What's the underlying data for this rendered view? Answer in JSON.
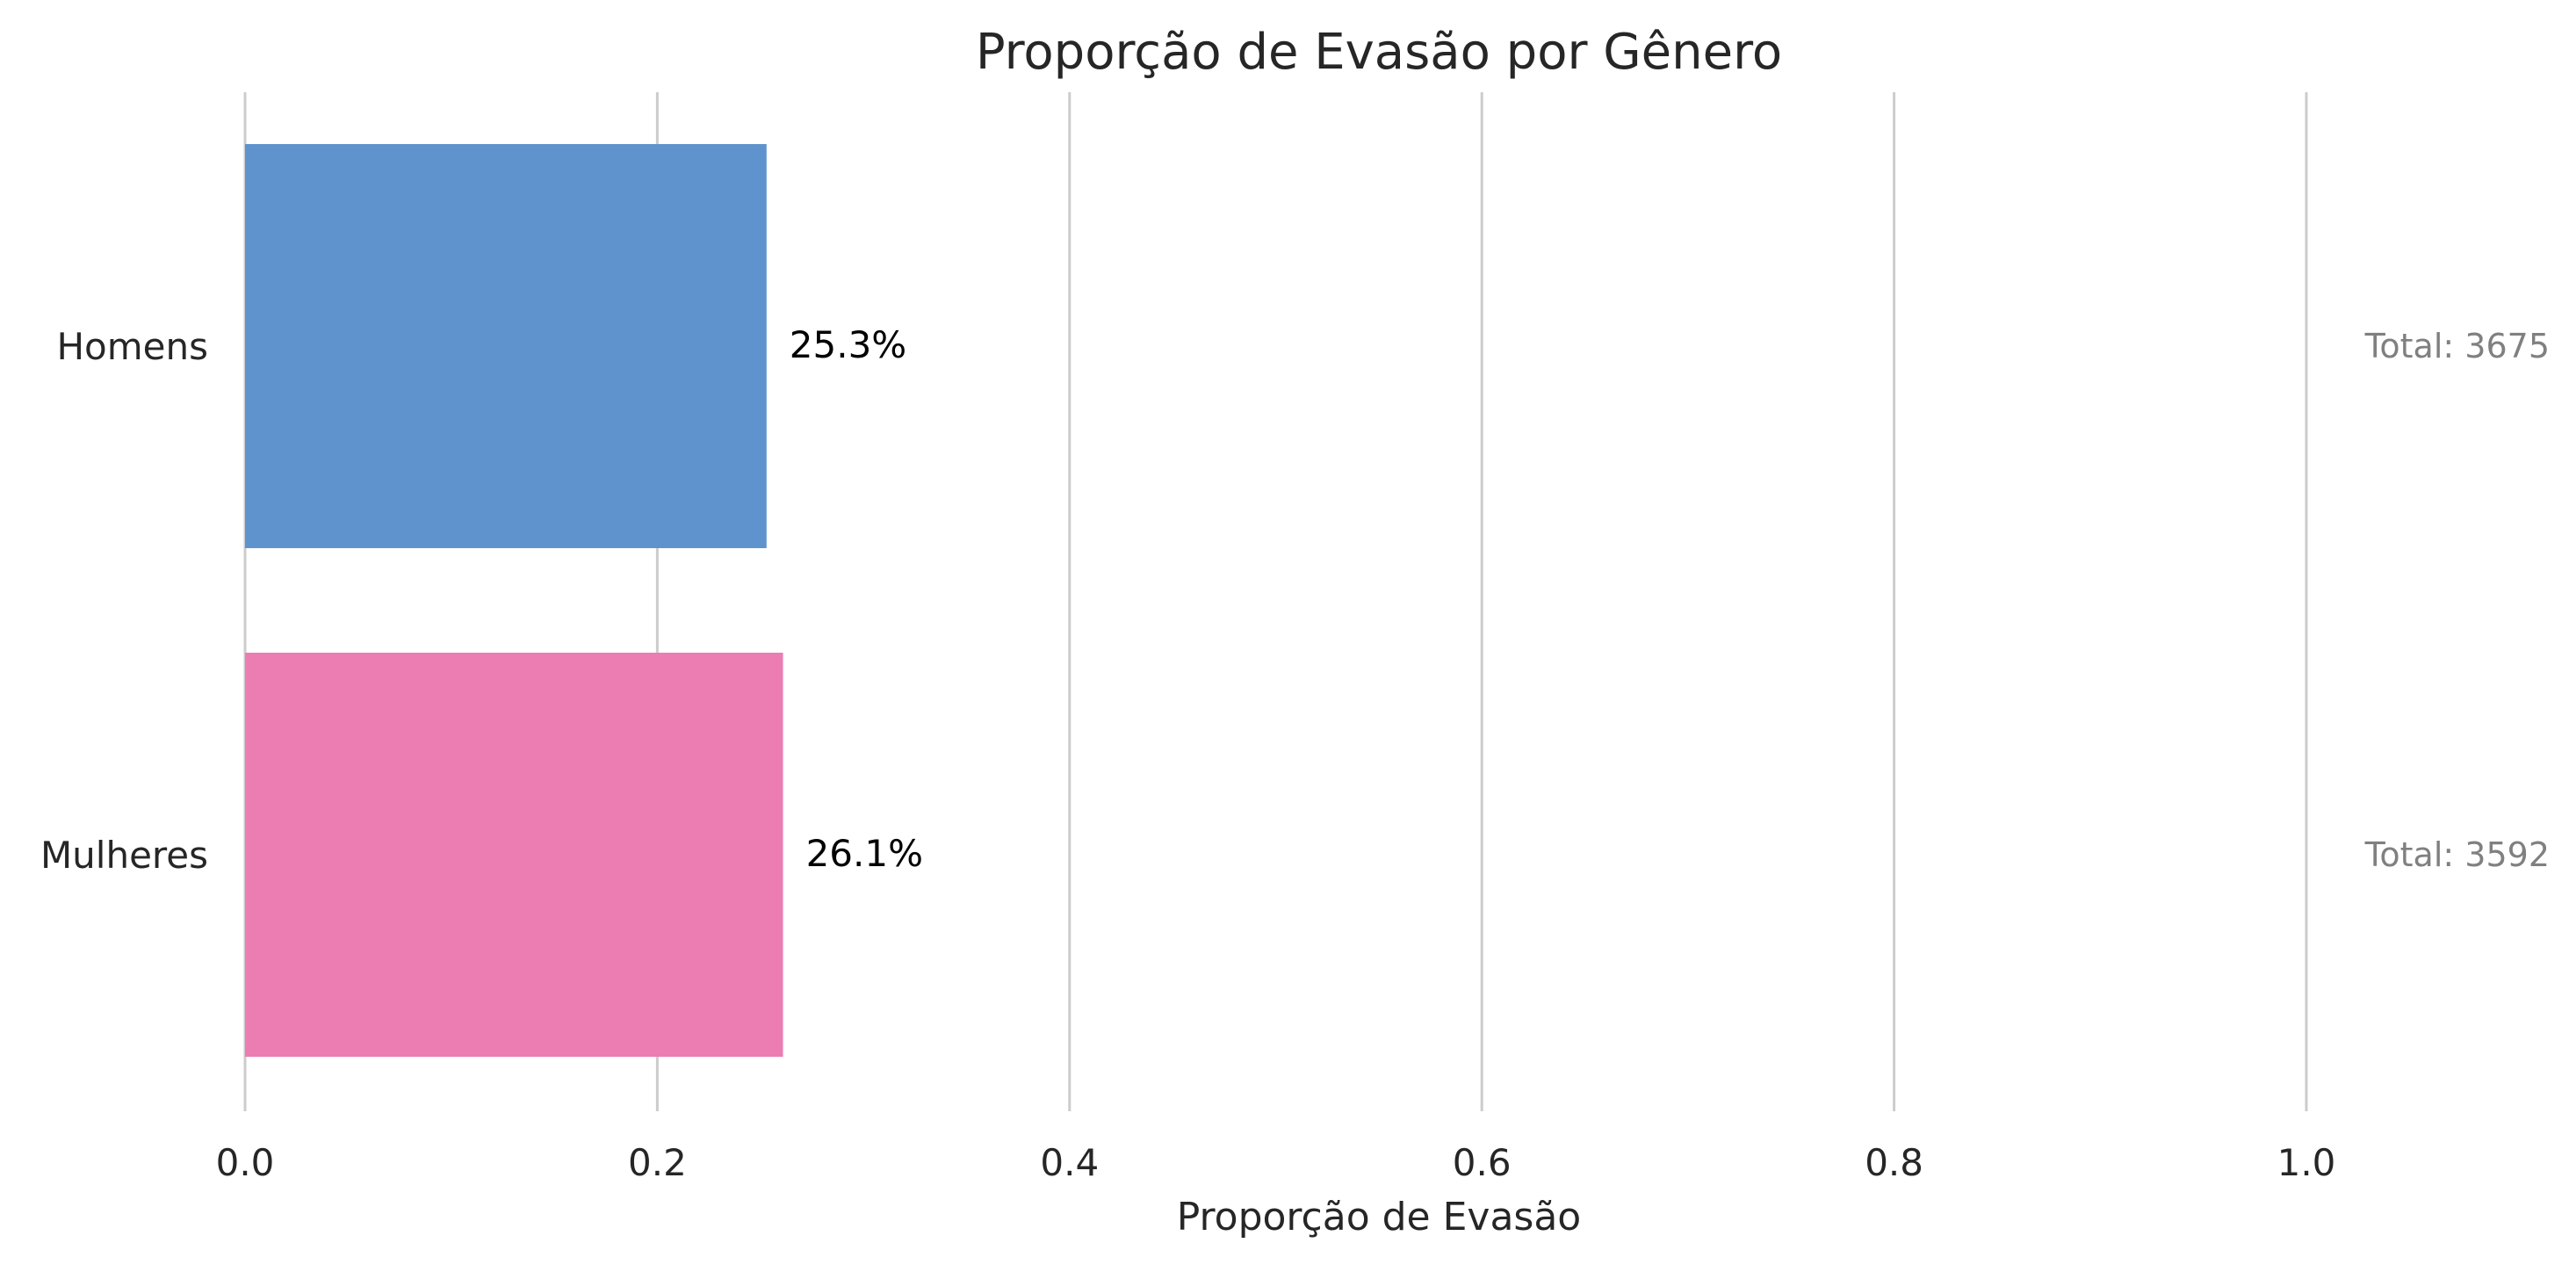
{
  "chart_data": {
    "type": "bar",
    "orientation": "horizontal",
    "title": "Proporção de Evasão por Gênero",
    "xlabel": "Proporção de Evasão",
    "ylabel": "",
    "xlim": [
      0,
      1.0
    ],
    "xticks": [
      0.0,
      0.2,
      0.4,
      0.6,
      0.8,
      1.0
    ],
    "xtick_labels": [
      "0.0",
      "0.2",
      "0.4",
      "0.6",
      "0.8",
      "1.0"
    ],
    "grid": "x",
    "categories": [
      "Homens",
      "Mulheres"
    ],
    "values": [
      0.253,
      0.261
    ],
    "value_labels": [
      "25.3%",
      "26.1%"
    ],
    "annotations": [
      "Total: 3675",
      "Total: 3592"
    ],
    "colors": [
      "#5f93cd",
      "#eb7db3"
    ]
  }
}
